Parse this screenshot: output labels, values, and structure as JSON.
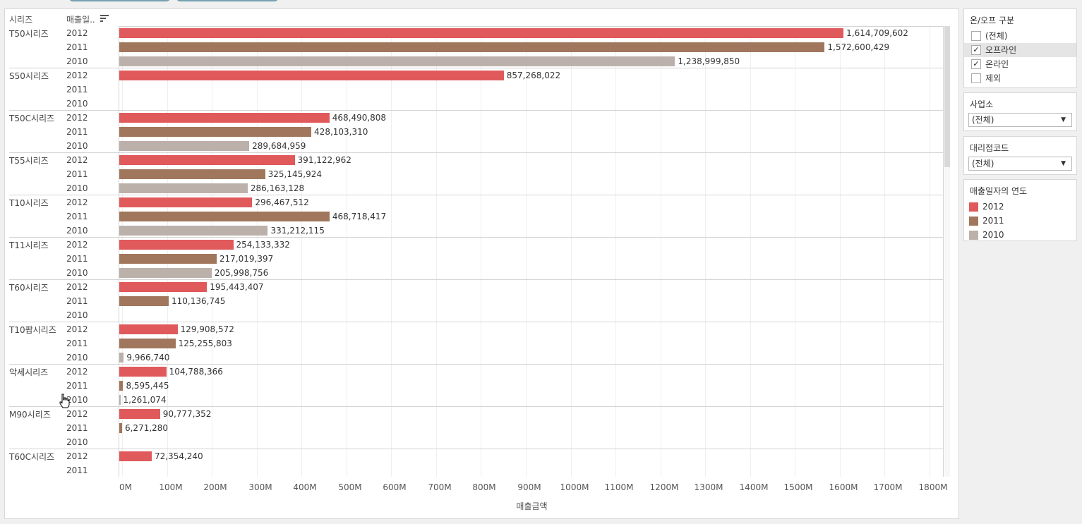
{
  "colors": {
    "y2012": "#e05a5c",
    "y2011": "#a0775c",
    "y2010": "#bcb0aa"
  },
  "headers": {
    "series": "시리즈",
    "year": "매출일.."
  },
  "chart_data": {
    "type": "bar",
    "orientation": "horizontal",
    "xlabel": "매출금액",
    "xlim": [
      0,
      1850000000
    ],
    "ticks": [
      "0M",
      "100M",
      "200M",
      "300M",
      "400M",
      "500M",
      "600M",
      "700M",
      "800M",
      "900M",
      "1000M",
      "1100M",
      "1200M",
      "1300M",
      "1400M",
      "1500M",
      "1600M",
      "1700M",
      "1800M"
    ],
    "groups": [
      {
        "name": "T50시리즈",
        "rows": [
          {
            "year": "2012",
            "value": 1614709602,
            "label": "1,614,709,602"
          },
          {
            "year": "2011",
            "value": 1572600429,
            "label": "1,572,600,429"
          },
          {
            "year": "2010",
            "value": 1238999850,
            "label": "1,238,999,850"
          }
        ]
      },
      {
        "name": "S50시리즈",
        "rows": [
          {
            "year": "2012",
            "value": 857268022,
            "label": "857,268,022"
          },
          {
            "year": "2011",
            "value": null,
            "label": ""
          },
          {
            "year": "2010",
            "value": null,
            "label": ""
          }
        ]
      },
      {
        "name": "T50C시리즈",
        "rows": [
          {
            "year": "2012",
            "value": 468490808,
            "label": "468,490,808"
          },
          {
            "year": "2011",
            "value": 428103310,
            "label": "428,103,310"
          },
          {
            "year": "2010",
            "value": 289684959,
            "label": "289,684,959"
          }
        ]
      },
      {
        "name": "T55시리즈",
        "rows": [
          {
            "year": "2012",
            "value": 391122962,
            "label": "391,122,962"
          },
          {
            "year": "2011",
            "value": 325145924,
            "label": "325,145,924"
          },
          {
            "year": "2010",
            "value": 286163128,
            "label": "286,163,128"
          }
        ]
      },
      {
        "name": "T10시리즈",
        "rows": [
          {
            "year": "2012",
            "value": 296467512,
            "label": "296,467,512"
          },
          {
            "year": "2011",
            "value": 468718417,
            "label": "468,718,417"
          },
          {
            "year": "2010",
            "value": 331212115,
            "label": "331,212,115"
          }
        ]
      },
      {
        "name": "T11시리즈",
        "rows": [
          {
            "year": "2012",
            "value": 254133332,
            "label": "254,133,332"
          },
          {
            "year": "2011",
            "value": 217019397,
            "label": "217,019,397"
          },
          {
            "year": "2010",
            "value": 205998756,
            "label": "205,998,756"
          }
        ]
      },
      {
        "name": "T60시리즈",
        "rows": [
          {
            "year": "2012",
            "value": 195443407,
            "label": "195,443,407"
          },
          {
            "year": "2011",
            "value": 110136745,
            "label": "110,136,745"
          },
          {
            "year": "2010",
            "value": null,
            "label": ""
          }
        ]
      },
      {
        "name": "T10팝시리즈",
        "rows": [
          {
            "year": "2012",
            "value": 129908572,
            "label": "129,908,572"
          },
          {
            "year": "2011",
            "value": 125255803,
            "label": "125,255,803"
          },
          {
            "year": "2010",
            "value": 9966740,
            "label": "9,966,740"
          }
        ]
      },
      {
        "name": "악세시리즈",
        "rows": [
          {
            "year": "2012",
            "value": 104788366,
            "label": "104,788,366"
          },
          {
            "year": "2011",
            "value": 8595445,
            "label": "8,595,445"
          },
          {
            "year": "2010",
            "value": 1261074,
            "label": "1,261,074"
          }
        ]
      },
      {
        "name": "M90시리즈",
        "rows": [
          {
            "year": "2012",
            "value": 90777352,
            "label": "90,777,352"
          },
          {
            "year": "2011",
            "value": 6271280,
            "label": "6,271,280"
          },
          {
            "year": "2010",
            "value": null,
            "label": ""
          }
        ]
      },
      {
        "name": "T60C시리즈",
        "rows": [
          {
            "year": "2012",
            "value": 72354240,
            "label": "72,354,240"
          },
          {
            "year": "2011",
            "value": null,
            "label": ""
          },
          {
            "year": "2010",
            "value": null,
            "label": ""
          }
        ]
      }
    ]
  },
  "filters": {
    "onoff": {
      "title": "온/오프 구분",
      "items": [
        {
          "label": "(전체)",
          "checked": false
        },
        {
          "label": "오프라인",
          "checked": true
        },
        {
          "label": "온라인",
          "checked": true
        },
        {
          "label": "제외",
          "checked": false
        }
      ]
    },
    "office": {
      "title": "사업소",
      "value": "(전체)"
    },
    "agency": {
      "title": "대리점코드",
      "value": "(전체)"
    }
  },
  "legend": {
    "title": "매출일자의 연도",
    "items": [
      {
        "label": "2012",
        "color": "#e05a5c"
      },
      {
        "label": "2011",
        "color": "#a0775c"
      },
      {
        "label": "2010",
        "color": "#bcb0aa"
      }
    ]
  }
}
